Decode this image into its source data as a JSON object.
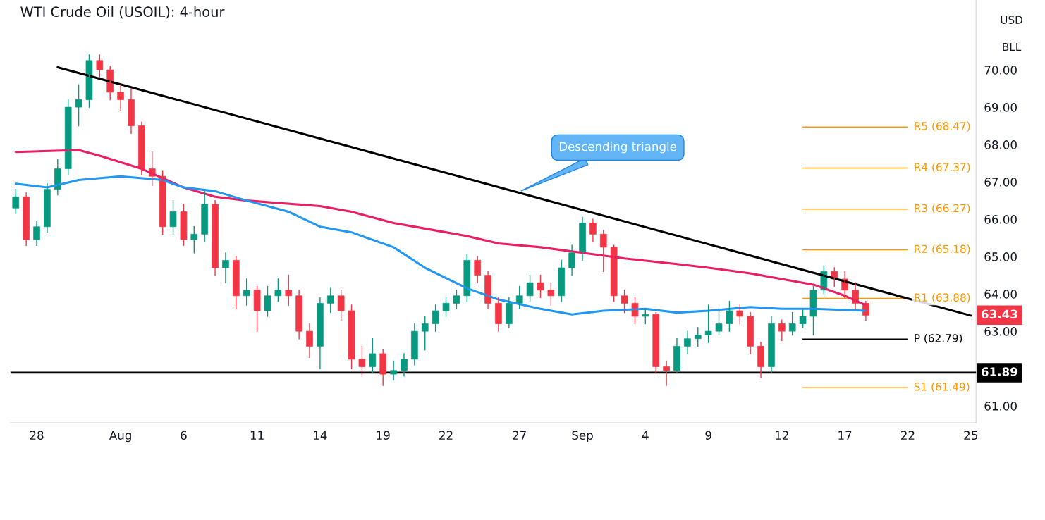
{
  "chart_data": {
    "type": "candlestick",
    "title": "WTI Crude Oil (USOIL): 4-hour",
    "annotations": [
      "USD",
      "BLL",
      {
        "text": "Descending triangle",
        "x": "27",
        "y": 66.74
      }
    ],
    "categories": [
      null,
      null,
      "28",
      null,
      null,
      null,
      null,
      null,
      null,
      null,
      "Aug",
      null,
      null,
      null,
      null,
      null,
      "6",
      null,
      null,
      null,
      null,
      null,
      null,
      "11",
      null,
      null,
      null,
      null,
      null,
      "14",
      null,
      null,
      null,
      null,
      null,
      "19",
      null,
      null,
      null,
      null,
      null,
      "22",
      null,
      null,
      null,
      null,
      null,
      null,
      "27",
      null,
      null,
      null,
      null,
      null,
      "Sep",
      null,
      null,
      null,
      null,
      null,
      "4",
      null,
      null,
      null,
      null,
      null,
      "9",
      null,
      null,
      null,
      null,
      null,
      null,
      "12",
      null,
      null,
      null,
      null,
      null,
      "17",
      null,
      null,
      null,
      null,
      null,
      "22",
      null,
      null,
      null,
      null,
      null,
      "25"
    ],
    "ohlc": [
      [
        66.3,
        66.8,
        66.15,
        66.6
      ],
      [
        66.6,
        66.7,
        65.3,
        65.45
      ],
      [
        65.45,
        65.95,
        65.3,
        65.8
      ],
      [
        65.8,
        66.95,
        65.65,
        66.8
      ],
      [
        66.8,
        67.6,
        66.65,
        67.35
      ],
      [
        67.35,
        69.2,
        67.2,
        69.0
      ],
      [
        69.0,
        69.6,
        68.5,
        69.2
      ],
      [
        69.2,
        70.4,
        69.0,
        70.25
      ],
      [
        70.25,
        70.4,
        69.8,
        70.0
      ],
      [
        70.0,
        70.1,
        69.2,
        69.4
      ],
      [
        69.4,
        69.6,
        68.9,
        69.2
      ],
      [
        69.2,
        69.5,
        68.3,
        68.5
      ],
      [
        68.5,
        68.6,
        67.2,
        67.35
      ],
      [
        67.35,
        67.8,
        66.9,
        67.15
      ],
      [
        67.15,
        67.3,
        65.6,
        65.8
      ],
      [
        65.8,
        66.5,
        65.6,
        66.2
      ],
      [
        66.2,
        66.4,
        65.3,
        65.45
      ],
      [
        65.45,
        65.8,
        65.1,
        65.6
      ],
      [
        65.6,
        66.75,
        65.4,
        66.4
      ],
      [
        66.4,
        66.5,
        64.5,
        64.7
      ],
      [
        64.7,
        65.1,
        64.3,
        64.9
      ],
      [
        64.9,
        65.0,
        63.6,
        63.95
      ],
      [
        63.95,
        64.4,
        63.7,
        64.1
      ],
      [
        64.1,
        64.2,
        63.0,
        63.55
      ],
      [
        63.55,
        64.2,
        63.4,
        63.95
      ],
      [
        63.95,
        64.4,
        63.8,
        64.1
      ],
      [
        64.1,
        64.5,
        63.7,
        63.95
      ],
      [
        63.95,
        64.1,
        62.8,
        63.0
      ],
      [
        63.0,
        63.2,
        62.3,
        62.6
      ],
      [
        62.6,
        63.9,
        62.0,
        63.75
      ],
      [
        63.75,
        64.15,
        63.5,
        63.95
      ],
      [
        63.95,
        64.1,
        63.3,
        63.55
      ],
      [
        63.55,
        63.7,
        62.0,
        62.25
      ],
      [
        62.25,
        62.6,
        61.8,
        62.05
      ],
      [
        62.05,
        62.8,
        61.9,
        62.4
      ],
      [
        62.4,
        62.5,
        61.55,
        61.85
      ],
      [
        61.85,
        62.2,
        61.7,
        61.95
      ],
      [
        61.95,
        62.4,
        61.8,
        62.25
      ],
      [
        62.25,
        63.2,
        62.1,
        63.0
      ],
      [
        63.0,
        63.4,
        62.5,
        63.2
      ],
      [
        63.2,
        63.7,
        63.0,
        63.55
      ],
      [
        63.55,
        63.9,
        63.4,
        63.75
      ],
      [
        63.75,
        64.1,
        63.6,
        63.95
      ],
      [
        63.95,
        65.05,
        63.8,
        64.9
      ],
      [
        64.9,
        65.0,
        64.3,
        64.5
      ],
      [
        64.5,
        64.6,
        63.6,
        63.75
      ],
      [
        63.75,
        63.9,
        63.0,
        63.2
      ],
      [
        63.2,
        63.9,
        63.1,
        63.75
      ],
      [
        63.75,
        64.2,
        63.6,
        63.95
      ],
      [
        63.95,
        64.5,
        63.8,
        64.3
      ],
      [
        64.3,
        64.5,
        63.9,
        64.1
      ],
      [
        64.1,
        64.3,
        63.7,
        63.95
      ],
      [
        63.95,
        64.9,
        63.8,
        64.7
      ],
      [
        64.7,
        65.3,
        64.5,
        65.1
      ],
      [
        65.1,
        66.05,
        64.9,
        65.9
      ],
      [
        65.9,
        66.0,
        65.4,
        65.6
      ],
      [
        65.6,
        65.7,
        64.6,
        65.25
      ],
      [
        65.25,
        65.3,
        63.8,
        63.95
      ],
      [
        63.95,
        64.1,
        63.5,
        63.75
      ],
      [
        63.75,
        63.9,
        63.2,
        63.4
      ],
      [
        63.4,
        63.6,
        63.2,
        63.45
      ],
      [
        63.45,
        63.5,
        61.9,
        62.05
      ],
      [
        62.05,
        62.2,
        61.55,
        61.95
      ],
      [
        61.95,
        62.8,
        61.9,
        62.6
      ],
      [
        62.6,
        63.0,
        62.4,
        62.8
      ],
      [
        62.8,
        63.1,
        62.6,
        62.9
      ],
      [
        62.9,
        63.7,
        62.7,
        63.0
      ],
      [
        63.0,
        63.6,
        62.9,
        63.2
      ],
      [
        63.2,
        63.8,
        63.0,
        63.55
      ],
      [
        63.55,
        63.7,
        63.2,
        63.4
      ],
      [
        63.4,
        63.5,
        62.4,
        62.6
      ],
      [
        62.6,
        62.7,
        61.75,
        62.05
      ],
      [
        62.05,
        63.4,
        61.9,
        63.2
      ],
      [
        63.2,
        63.3,
        62.75,
        63.0
      ],
      [
        63.0,
        63.5,
        62.9,
        63.2
      ],
      [
        63.2,
        63.6,
        63.1,
        63.4
      ],
      [
        63.4,
        64.2,
        62.9,
        64.1
      ],
      [
        64.1,
        64.75,
        64.0,
        64.6
      ],
      [
        64.6,
        64.7,
        64.2,
        64.4
      ],
      [
        64.4,
        64.6,
        63.9,
        64.1
      ],
      [
        64.1,
        64.3,
        63.6,
        63.75
      ],
      [
        63.75,
        63.8,
        63.3,
        63.43
      ],
      null,
      null,
      null,
      null,
      null,
      null,
      null,
      null,
      null,
      null
    ],
    "colors": [
      "#089981",
      "#f23645",
      "#089981",
      "#089981",
      "#089981",
      "#089981",
      "#089981",
      "#089981",
      "#f23645",
      "#f23645",
      "#f23645",
      "#f23645",
      "#f23645",
      "#f23645",
      "#f23645",
      "#089981",
      "#f23645",
      "#089981",
      "#089981",
      "#f23645",
      "#089981",
      "#f23645",
      "#089981",
      "#f23645",
      "#089981",
      "#089981",
      "#f23645",
      "#f23645",
      "#f23645",
      "#089981",
      "#089981",
      "#f23645",
      "#f23645",
      "#f23645",
      "#089981",
      "#f23645",
      "#089981",
      "#089981",
      "#089981",
      "#089981",
      "#089981",
      "#089981",
      "#089981",
      "#089981",
      "#f23645",
      "#f23645",
      "#f23645",
      "#089981",
      "#089981",
      "#089981",
      "#f23645",
      "#f23645",
      "#089981",
      "#089981",
      "#089981",
      "#f23645",
      "#f23645",
      "#f23645",
      "#f23645",
      "#f23645",
      "#089981",
      "#f23645",
      "#f23645",
      "#089981",
      "#089981",
      "#089981",
      "#089981",
      "#089981",
      "#089981",
      "#f23645",
      "#f23645",
      "#f23645",
      "#089981",
      "#f23645",
      "#089981",
      "#089981",
      "#089981",
      "#089981",
      "#f23645",
      "#f23645",
      "#f23645",
      "#f23645",
      null,
      null,
      null,
      null,
      null,
      null,
      null,
      null,
      null,
      null
    ],
    "value_labels": [
      null,
      null,
      null,
      null,
      null,
      null,
      null,
      null,
      null,
      null,
      null,
      null,
      null,
      null,
      null,
      null,
      null,
      null,
      null,
      null,
      null,
      null,
      null,
      null,
      null,
      null,
      null,
      null,
      null,
      null,
      null,
      null,
      null,
      null,
      null,
      null,
      null,
      null,
      null,
      null,
      null,
      null,
      null,
      null,
      null,
      null,
      null,
      null,
      null,
      null,
      null,
      null,
      null,
      null,
      null,
      null,
      null,
      null,
      null,
      null,
      null,
      null,
      null,
      null,
      null,
      null,
      null,
      null,
      null,
      null,
      null,
      null,
      null,
      null,
      null,
      null,
      null,
      null,
      null,
      null,
      null,
      "63.43",
      null,
      null,
      null,
      null,
      null,
      null,
      null,
      null,
      null,
      null
    ],
    "series": [
      {
        "type": "line",
        "color": "#e91e63",
        "values": [
          67.8,
          null,
          null,
          null,
          null,
          null,
          67.85,
          null,
          67.7,
          null,
          null,
          null,
          67.35,
          null,
          null,
          null,
          66.85,
          null,
          null,
          66.6,
          null,
          null,
          66.5,
          null,
          null,
          null,
          null,
          null,
          null,
          66.35,
          null,
          null,
          66.2,
          null,
          null,
          null,
          65.9,
          null,
          null,
          65.75,
          null,
          null,
          null,
          65.55,
          null,
          null,
          65.35,
          null,
          null,
          null,
          65.25,
          null,
          null,
          null,
          65.1,
          null,
          null,
          null,
          64.95,
          null,
          null,
          null,
          null,
          64.8,
          null,
          null,
          64.7,
          null,
          null,
          null,
          64.55,
          null,
          null,
          64.4,
          null,
          null,
          64.25,
          null,
          null,
          63.95,
          null,
          63.7,
          null,
          null,
          null,
          null,
          null,
          null,
          null,
          null,
          null,
          null
        ]
      },
      {
        "type": "line",
        "color": "#2196f3",
        "values": [
          66.95,
          null,
          null,
          66.85,
          null,
          null,
          67.05,
          null,
          null,
          null,
          67.15,
          null,
          null,
          null,
          67.05,
          null,
          66.85,
          null,
          null,
          66.75,
          null,
          null,
          66.5,
          null,
          null,
          null,
          66.2,
          null,
          null,
          65.8,
          null,
          null,
          65.65,
          null,
          null,
          null,
          65.25,
          null,
          null,
          64.7,
          null,
          null,
          null,
          64.15,
          null,
          null,
          63.85,
          null,
          null,
          null,
          63.6,
          null,
          null,
          63.45,
          null,
          null,
          63.55,
          null,
          null,
          null,
          63.6,
          null,
          null,
          63.5,
          null,
          null,
          63.55,
          null,
          null,
          null,
          63.65,
          null,
          null,
          63.6,
          null,
          null,
          63.6,
          null,
          null,
          null,
          null,
          63.55,
          null,
          null,
          null,
          null,
          null,
          null,
          null,
          null,
          null,
          null
        ]
      },
      {
        "type": "line",
        "color": "#000000",
        "values": [
          null,
          null,
          null,
          null,
          70.07,
          null,
          null,
          null,
          null,
          null,
          null,
          null,
          null,
          null,
          null,
          null,
          null,
          null,
          null,
          null,
          null,
          null,
          null,
          null,
          null,
          null,
          null,
          null,
          null,
          null,
          null,
          null,
          null,
          null,
          null,
          null,
          null,
          null,
          null,
          null,
          null,
          null,
          null,
          null,
          null,
          null,
          null,
          null,
          null,
          null,
          null,
          null,
          null,
          null,
          null,
          null,
          null,
          null,
          null,
          null,
          null,
          null,
          null,
          null,
          null,
          null,
          null,
          null,
          null,
          null,
          null,
          null,
          null,
          null,
          null,
          null,
          null,
          null,
          null,
          null,
          null,
          null,
          null,
          null,
          null,
          null,
          null,
          null,
          null,
          null,
          null,
          63.42
        ]
      },
      {
        "type": "line",
        "name": "R5 (68.47)",
        "color": "#ff9800",
        "values": [
          null,
          null,
          null,
          null,
          null,
          null,
          null,
          null,
          null,
          null,
          null,
          null,
          null,
          null,
          null,
          null,
          null,
          null,
          null,
          null,
          null,
          null,
          null,
          null,
          null,
          null,
          null,
          null,
          null,
          null,
          null,
          null,
          null,
          null,
          null,
          null,
          null,
          null,
          null,
          null,
          null,
          null,
          null,
          null,
          null,
          null,
          null,
          null,
          null,
          null,
          null,
          null,
          null,
          null,
          null,
          null,
          null,
          null,
          null,
          null,
          null,
          null,
          null,
          null,
          null,
          null,
          null,
          null,
          null,
          null,
          null,
          null,
          null,
          null,
          null,
          68.47,
          null,
          null,
          null,
          null,
          null,
          null,
          null,
          null,
          null,
          68.47,
          null,
          null,
          null,
          null,
          null,
          null
        ]
      },
      {
        "type": "line",
        "name": "R4 (67.37)",
        "color": "#ff9800",
        "values": [
          null,
          null,
          null,
          null,
          null,
          null,
          null,
          null,
          null,
          null,
          null,
          null,
          null,
          null,
          null,
          null,
          null,
          null,
          null,
          null,
          null,
          null,
          null,
          null,
          null,
          null,
          null,
          null,
          null,
          null,
          null,
          null,
          null,
          null,
          null,
          null,
          null,
          null,
          null,
          null,
          null,
          null,
          null,
          null,
          null,
          null,
          null,
          null,
          null,
          null,
          null,
          null,
          null,
          null,
          null,
          null,
          null,
          null,
          null,
          null,
          null,
          null,
          null,
          null,
          null,
          null,
          null,
          null,
          null,
          null,
          null,
          null,
          null,
          null,
          null,
          67.37,
          null,
          null,
          null,
          null,
          null,
          null,
          null,
          null,
          null,
          67.37,
          null,
          null,
          null,
          null,
          null,
          null
        ]
      },
      {
        "type": "line",
        "name": "R3 (66.27)",
        "color": "#ff9800",
        "values": [
          null,
          null,
          null,
          null,
          null,
          null,
          null,
          null,
          null,
          null,
          null,
          null,
          null,
          null,
          null,
          null,
          null,
          null,
          null,
          null,
          null,
          null,
          null,
          null,
          null,
          null,
          null,
          null,
          null,
          null,
          null,
          null,
          null,
          null,
          null,
          null,
          null,
          null,
          null,
          null,
          null,
          null,
          null,
          null,
          null,
          null,
          null,
          null,
          null,
          null,
          null,
          null,
          null,
          null,
          null,
          null,
          null,
          null,
          null,
          null,
          null,
          null,
          null,
          null,
          null,
          null,
          null,
          null,
          null,
          null,
          null,
          null,
          null,
          null,
          null,
          66.27,
          null,
          null,
          null,
          null,
          null,
          null,
          null,
          null,
          null,
          66.27,
          null,
          null,
          null,
          null,
          null,
          null
        ]
      },
      {
        "type": "line",
        "name": "R2 (65.18)",
        "color": "#ff9800",
        "values": [
          null,
          null,
          null,
          null,
          null,
          null,
          null,
          null,
          null,
          null,
          null,
          null,
          null,
          null,
          null,
          null,
          null,
          null,
          null,
          null,
          null,
          null,
          null,
          null,
          null,
          null,
          null,
          null,
          null,
          null,
          null,
          null,
          null,
          null,
          null,
          null,
          null,
          null,
          null,
          null,
          null,
          null,
          null,
          null,
          null,
          null,
          null,
          null,
          null,
          null,
          null,
          null,
          null,
          null,
          null,
          null,
          null,
          null,
          null,
          null,
          null,
          null,
          null,
          null,
          null,
          null,
          null,
          null,
          null,
          null,
          null,
          null,
          null,
          null,
          null,
          65.18,
          null,
          null,
          null,
          null,
          null,
          null,
          null,
          null,
          null,
          65.18,
          null,
          null,
          null,
          null,
          null,
          null
        ]
      },
      {
        "type": "line",
        "name": "R1 (63.88)",
        "color": "#ff9800",
        "values": [
          null,
          null,
          null,
          null,
          null,
          null,
          null,
          null,
          null,
          null,
          null,
          null,
          null,
          null,
          null,
          null,
          null,
          null,
          null,
          null,
          null,
          null,
          null,
          null,
          null,
          null,
          null,
          null,
          null,
          null,
          null,
          null,
          null,
          null,
          null,
          null,
          null,
          null,
          null,
          null,
          null,
          null,
          null,
          null,
          null,
          null,
          null,
          null,
          null,
          null,
          null,
          null,
          null,
          null,
          null,
          null,
          null,
          null,
          null,
          null,
          null,
          null,
          null,
          null,
          null,
          null,
          null,
          null,
          null,
          null,
          null,
          null,
          null,
          null,
          null,
          63.88,
          null,
          null,
          null,
          null,
          null,
          null,
          null,
          null,
          null,
          63.88,
          null,
          null,
          null,
          null,
          null,
          null
        ]
      },
      {
        "type": "line",
        "name": "P (62.79)",
        "color": "#000000",
        "values": [
          null,
          null,
          null,
          null,
          null,
          null,
          null,
          null,
          null,
          null,
          null,
          null,
          null,
          null,
          null,
          null,
          null,
          null,
          null,
          null,
          null,
          null,
          null,
          null,
          null,
          null,
          null,
          null,
          null,
          null,
          null,
          null,
          null,
          null,
          null,
          null,
          null,
          null,
          null,
          null,
          null,
          null,
          null,
          null,
          null,
          null,
          null,
          null,
          null,
          null,
          null,
          null,
          null,
          null,
          null,
          null,
          null,
          null,
          null,
          null,
          null,
          null,
          null,
          null,
          null,
          null,
          null,
          null,
          null,
          null,
          null,
          null,
          null,
          null,
          null,
          62.79,
          null,
          null,
          null,
          null,
          null,
          null,
          null,
          null,
          null,
          62.79,
          null,
          null,
          null,
          null,
          null,
          null
        ]
      },
      {
        "type": "line",
        "name": "S1 (61.49)",
        "color": "#ff9800",
        "values": [
          null,
          null,
          null,
          null,
          null,
          null,
          null,
          null,
          null,
          null,
          null,
          null,
          null,
          null,
          null,
          null,
          null,
          null,
          null,
          null,
          null,
          null,
          null,
          null,
          null,
          null,
          null,
          null,
          null,
          null,
          null,
          null,
          null,
          null,
          null,
          null,
          null,
          null,
          null,
          null,
          null,
          null,
          null,
          null,
          null,
          null,
          null,
          null,
          null,
          null,
          null,
          null,
          null,
          null,
          null,
          null,
          null,
          null,
          null,
          null,
          null,
          null,
          null,
          null,
          null,
          null,
          null,
          null,
          null,
          null,
          null,
          null,
          null,
          null,
          null,
          61.49,
          null,
          null,
          null,
          null,
          null,
          null,
          null,
          null,
          null,
          61.49,
          null,
          null,
          null,
          null,
          null,
          null
        ]
      }
    ],
    "ref_lines": [
      {
        "axis": "y",
        "value": 61.89,
        "label": "61.89",
        "color": "#000000"
      }
    ],
    "ylim": [
      60.55,
      71.87
    ],
    "yticks": [
      {
        "value": 61,
        "label": "61.00"
      },
      {
        "value": 63,
        "label": "63.00"
      },
      {
        "value": 64,
        "label": "64.00"
      },
      {
        "value": 65,
        "label": "65.00"
      },
      {
        "value": 66,
        "label": "66.00"
      },
      {
        "value": 67,
        "label": "67.00"
      },
      {
        "value": 68,
        "label": "68.00"
      },
      {
        "value": 69,
        "label": "69.00"
      },
      {
        "value": 70,
        "label": "70.00"
      }
    ],
    "grid": false,
    "legend": false
  }
}
